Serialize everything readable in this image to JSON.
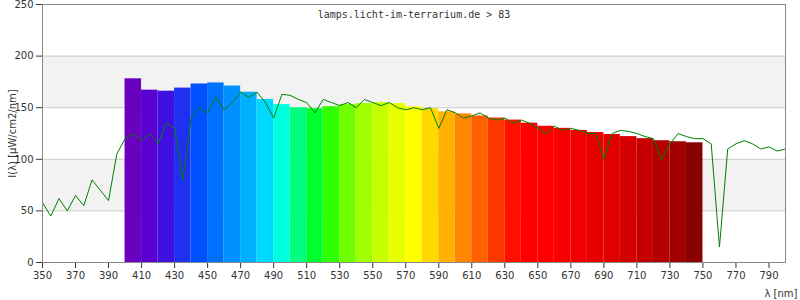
{
  "chart_data": {
    "type": "spectrum",
    "title": "lamps.licht-im-terrarium.de > 83",
    "x_label": "λ [nm]",
    "y_label": "I(λ) [µW/cm2/nm]",
    "xlim": [
      350,
      800
    ],
    "xticks": [
      350,
      370,
      390,
      410,
      430,
      450,
      470,
      490,
      510,
      530,
      550,
      570,
      590,
      610,
      630,
      650,
      670,
      690,
      710,
      730,
      750,
      770,
      790
    ],
    "ylim": [
      0,
      250
    ],
    "yticks": [
      0,
      50,
      100,
      150,
      200,
      250
    ],
    "grid": true,
    "series": [
      {
        "type": "bar",
        "bins": [
          400,
          410,
          420,
          430,
          440,
          450,
          460,
          470,
          480,
          490,
          500,
          510,
          520,
          530,
          540,
          550,
          560,
          570,
          580,
          590,
          600,
          610,
          620,
          630,
          640,
          650,
          660,
          670,
          680,
          690,
          700,
          710,
          720,
          730,
          740,
          750
        ],
        "values": [
          178,
          167,
          166,
          169,
          173,
          174,
          171,
          165,
          158,
          153,
          150,
          149,
          151,
          153,
          154,
          155,
          154,
          151,
          149,
          146,
          144,
          142,
          140,
          138,
          135,
          132,
          130,
          128,
          126,
          124,
          122,
          120,
          118,
          117,
          116
        ],
        "colors": [
          "#6a00c0",
          "#5a00d0",
          "#4010e0",
          "#2030f0",
          "#0050ff",
          "#0070ff",
          "#0090ff",
          "#00b0ff",
          "#00d8ff",
          "#00ffe0",
          "#00ff80",
          "#00ff30",
          "#30ff00",
          "#70ff00",
          "#a0ff00",
          "#c8ff00",
          "#e8ff00",
          "#ffff00",
          "#ffd800",
          "#ffb000",
          "#ff8800",
          "#ff6000",
          "#ff3800",
          "#ff1000",
          "#ff0000",
          "#ff0000",
          "#f80000",
          "#f00000",
          "#e80000",
          "#e00000",
          "#d40000",
          "#c40000",
          "#b40000",
          "#a00000",
          "#880000"
        ]
      },
      {
        "type": "line",
        "color": "#008000",
        "x": [
          350,
          355,
          360,
          365,
          370,
          375,
          380,
          385,
          390,
          395,
          400,
          405,
          410,
          415,
          420,
          425,
          430,
          435,
          440,
          445,
          450,
          455,
          460,
          465,
          470,
          475,
          480,
          485,
          490,
          495,
          500,
          505,
          510,
          515,
          520,
          525,
          530,
          535,
          540,
          545,
          550,
          555,
          560,
          565,
          570,
          575,
          580,
          585,
          590,
          595,
          600,
          605,
          610,
          615,
          620,
          625,
          630,
          635,
          640,
          645,
          650,
          655,
          660,
          665,
          670,
          675,
          680,
          685,
          690,
          695,
          700,
          705,
          710,
          715,
          720,
          725,
          730,
          735,
          740,
          745,
          750,
          755,
          760,
          765,
          770,
          775,
          780,
          785,
          790,
          795,
          800
        ],
        "values": [
          58,
          45,
          62,
          50,
          65,
          55,
          80,
          70,
          60,
          105,
          120,
          125,
          118,
          125,
          115,
          135,
          130,
          80,
          140,
          150,
          145,
          160,
          148,
          155,
          165,
          160,
          165,
          155,
          140,
          163,
          162,
          158,
          155,
          145,
          158,
          155,
          152,
          155,
          150,
          158,
          155,
          152,
          155,
          150,
          148,
          150,
          148,
          150,
          130,
          148,
          145,
          140,
          142,
          145,
          140,
          138,
          140,
          135,
          138,
          135,
          130,
          125,
          132,
          128,
          130,
          128,
          125,
          125,
          100,
          125,
          128,
          127,
          125,
          122,
          120,
          100,
          115,
          125,
          122,
          120,
          120,
          115,
          15,
          110,
          115,
          118,
          115,
          110,
          112,
          108,
          110
        ]
      }
    ]
  }
}
